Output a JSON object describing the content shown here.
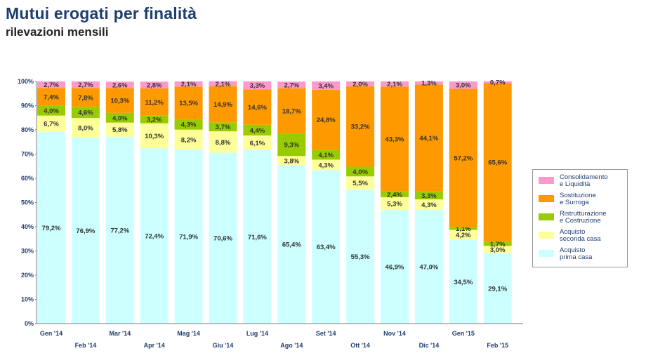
{
  "title": "Mutui erogati per finalità",
  "subtitle": "rilevazioni mensili",
  "chart_data": {
    "type": "bar",
    "stacked": true,
    "categories": [
      "Gen '14",
      "Feb '14",
      "Mar '14",
      "Apr '14",
      "Mag '14",
      "Giu '14",
      "Lug '14",
      "Ago '14",
      "Set '14",
      "Ott '14",
      "Nov '14",
      "Dic '14",
      "Gen '15",
      "Feb '15"
    ],
    "ylim": [
      0,
      100
    ],
    "yticks": [
      "0%",
      "10%",
      "20%",
      "30%",
      "40%",
      "50%",
      "60%",
      "70%",
      "80%",
      "90%",
      "100%"
    ],
    "series": [
      {
        "name": "Acquisto\nprima casa",
        "color": "#ccffff",
        "values": [
          79.2,
          76.9,
          77.2,
          72.4,
          71.9,
          70.6,
          71.6,
          65.4,
          63.4,
          55.3,
          46.9,
          47.0,
          34.5,
          29.1
        ],
        "labels": [
          "79,2%",
          "76,9%",
          "77,2%",
          "72,4%",
          "71,9%",
          "70,6%",
          "71,6%",
          "65,4%",
          "63,4%",
          "55,3%",
          "46,9%",
          "47,0%",
          "34,5%",
          "29,1%"
        ]
      },
      {
        "name": "Acquisto\nseconda casa",
        "color": "#ffff99",
        "values": [
          6.7,
          8.0,
          5.8,
          10.3,
          8.2,
          8.8,
          6.1,
          3.8,
          4.3,
          5.5,
          5.3,
          4.3,
          4.2,
          3.0
        ],
        "labels": [
          "6,7%",
          "8,0%",
          "5,8%",
          "10,3%",
          "8,2%",
          "8,8%",
          "6,1%",
          "3,8%",
          "4,3%",
          "5,5%",
          "5,3%",
          "4,3%",
          "4,2%",
          "3,0%"
        ]
      },
      {
        "name": "Ristrutturazione\ne Costruzione",
        "color": "#99cc00",
        "values": [
          4.0,
          4.6,
          4.0,
          3.2,
          4.3,
          3.7,
          4.4,
          9.3,
          4.1,
          4.0,
          2.4,
          3.3,
          1.1,
          1.7
        ],
        "labels": [
          "4,0%",
          "4,6%",
          "4,0%",
          "3,2%",
          "4,3%",
          "3,7%",
          "4,4%",
          "9,3%",
          "4,1%",
          "4,0%",
          "2,4%",
          "3,3%",
          "1,1%",
          "1,7%"
        ]
      },
      {
        "name": "Sostituzione\ne Surroga",
        "color": "#ff9900",
        "values": [
          7.4,
          7.8,
          10.3,
          11.2,
          13.5,
          14.9,
          14.6,
          18.7,
          24.8,
          33.2,
          43.3,
          44.1,
          57.2,
          65.6
        ],
        "labels": [
          "7,4%",
          "7,8%",
          "10,3%",
          "11,2%",
          "13,5%",
          "14,9%",
          "14,6%",
          "18,7%",
          "24,8%",
          "33,2%",
          "43,3%",
          "44,1%",
          "57,2%",
          "65,6%"
        ]
      },
      {
        "name": "Consolidamento\ne Liquidità",
        "color": "#ff99cc",
        "values": [
          2.7,
          2.7,
          2.6,
          2.8,
          2.1,
          2.1,
          3.3,
          2.7,
          3.4,
          2.0,
          2.1,
          1.3,
          3.0,
          0.7
        ],
        "labels": [
          "2,7%",
          "2,7%",
          "2,6%",
          "2,8%",
          "2,1%",
          "2,1%",
          "3,3%",
          "2,7%",
          "3,4%",
          "2,0%",
          "2,1%",
          "1,3%",
          "3,0%",
          "0,7%"
        ]
      }
    ]
  }
}
